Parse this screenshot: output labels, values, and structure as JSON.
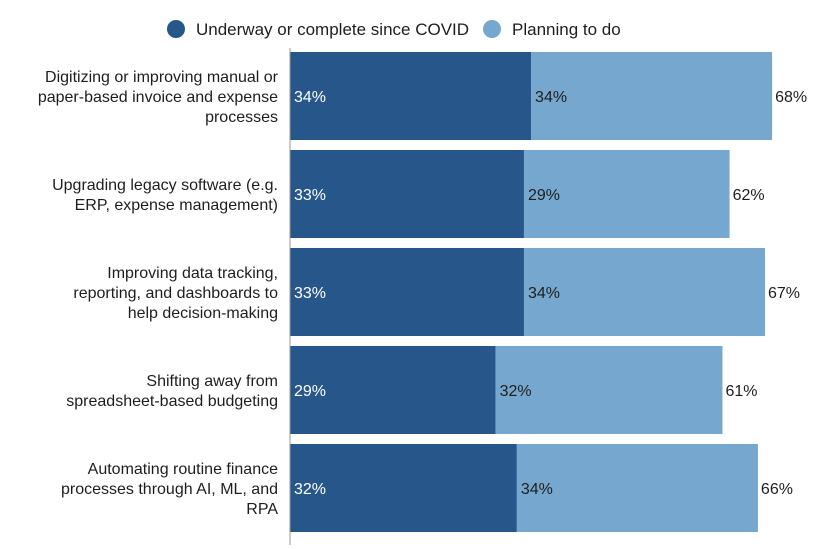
{
  "chart_data": {
    "type": "bar",
    "orientation": "horizontal",
    "stacked": true,
    "categories": [
      [
        "Digitizing or improving manual or",
        "paper-based invoice and expense",
        "processes"
      ],
      [
        "Upgrading legacy software (e.g.",
        "ERP, expense management)"
      ],
      [
        "Improving data tracking,",
        "reporting, and dashboards to",
        "help decision-making"
      ],
      [
        "Shifting away from",
        "spreadsheet-based budgeting"
      ],
      [
        "Automating routine finance",
        "processes through AI, ML, and",
        "RPA"
      ]
    ],
    "series": [
      {
        "name": "Underway or complete since COVID",
        "color": "#27578a",
        "values": [
          34,
          33,
          33,
          29,
          32
        ],
        "labels": [
          "34%",
          "33%",
          "33%",
          "29%",
          "32%"
        ]
      },
      {
        "name": "Planning to do",
        "color": "#76a7cf",
        "values": [
          34,
          29,
          34,
          32,
          34
        ],
        "labels": [
          "34%",
          "29%",
          "34%",
          "32%",
          "34%"
        ]
      }
    ],
    "totals": [
      "68%",
      "62%",
      "67%",
      "61%",
      "66%"
    ],
    "xlim": [
      0,
      78
    ],
    "legend_position": "top",
    "grid": false,
    "axis_color": "#999999"
  }
}
